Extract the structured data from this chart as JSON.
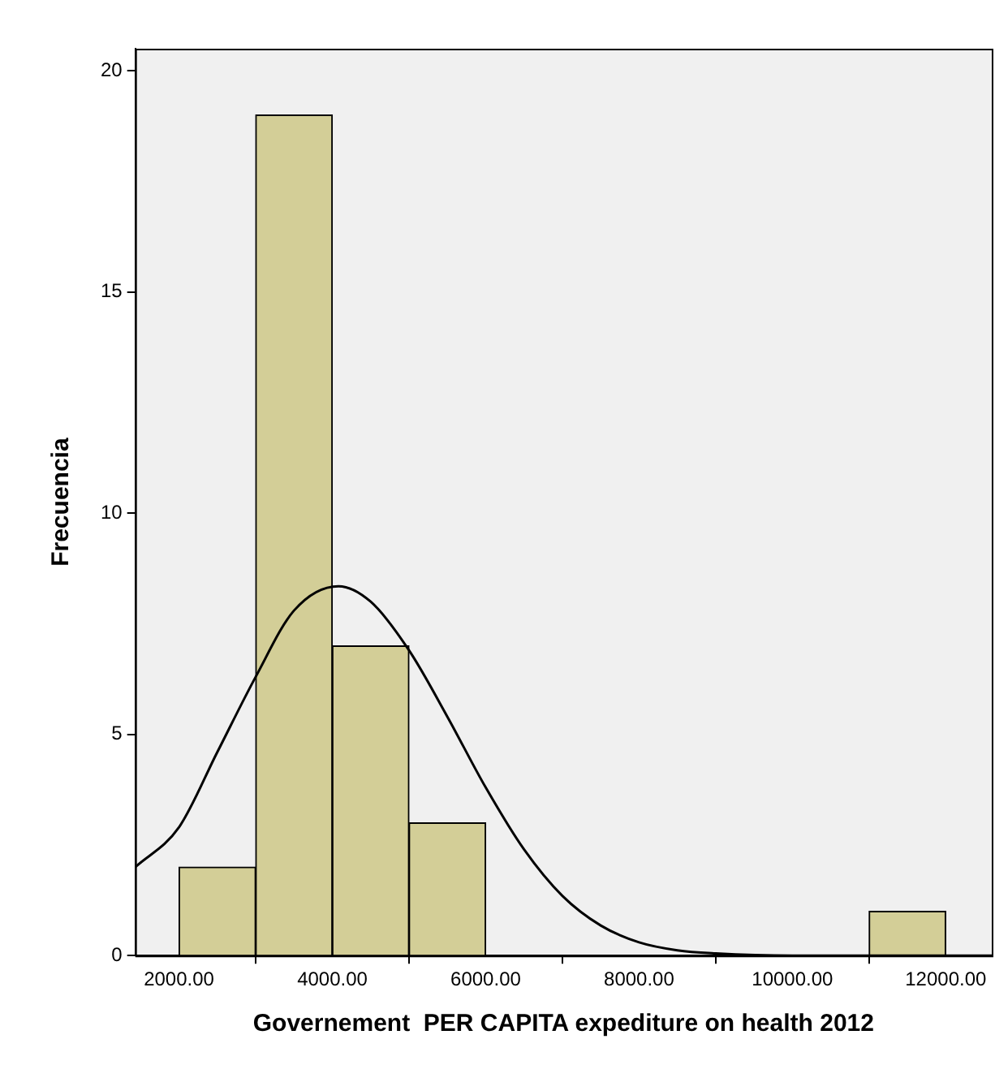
{
  "chart_data": {
    "type": "histogram",
    "xlabel": "Governement  PER CAPITA expediture on health 2012",
    "ylabel": "Frecuencia",
    "bins": [
      2000,
      3000,
      4000,
      5000,
      6000,
      7000,
      8000,
      9000,
      10000,
      11000,
      12000
    ],
    "values": [
      2,
      19,
      7,
      3,
      0,
      0,
      0,
      0,
      0,
      1
    ],
    "color": "#d3ce97",
    "xlim": [
      1430,
      12600
    ],
    "xticks": [
      {
        "value": 2000,
        "label": "2000.00"
      },
      {
        "value": 4000,
        "label": "4000.00"
      },
      {
        "value": 6000,
        "label": "6000.00"
      },
      {
        "value": 8000,
        "label": "8000.00"
      },
      {
        "value": 10000,
        "label": "10000.00"
      },
      {
        "value": 12000,
        "label": "12000.00"
      }
    ],
    "ylim": [
      0,
      20.5
    ],
    "yticks": [
      0,
      5,
      10,
      15,
      20
    ],
    "grid": false,
    "legend": false,
    "series": [
      {
        "type": "line",
        "color": "#000000",
        "marker": "none",
        "x": [
          1430,
          2000,
          2500,
          3000,
          3500,
          4080,
          4500,
          5000,
          5500,
          6000,
          6500,
          7000,
          7500,
          8000,
          8500,
          9000,
          10000,
          12600
        ],
        "values": [
          2.0,
          2.9,
          4.6,
          6.3,
          7.8,
          8.35,
          8.0,
          6.9,
          5.4,
          3.8,
          2.4,
          1.35,
          0.68,
          0.3,
          0.12,
          0.05,
          0,
          0
        ]
      }
    ]
  }
}
